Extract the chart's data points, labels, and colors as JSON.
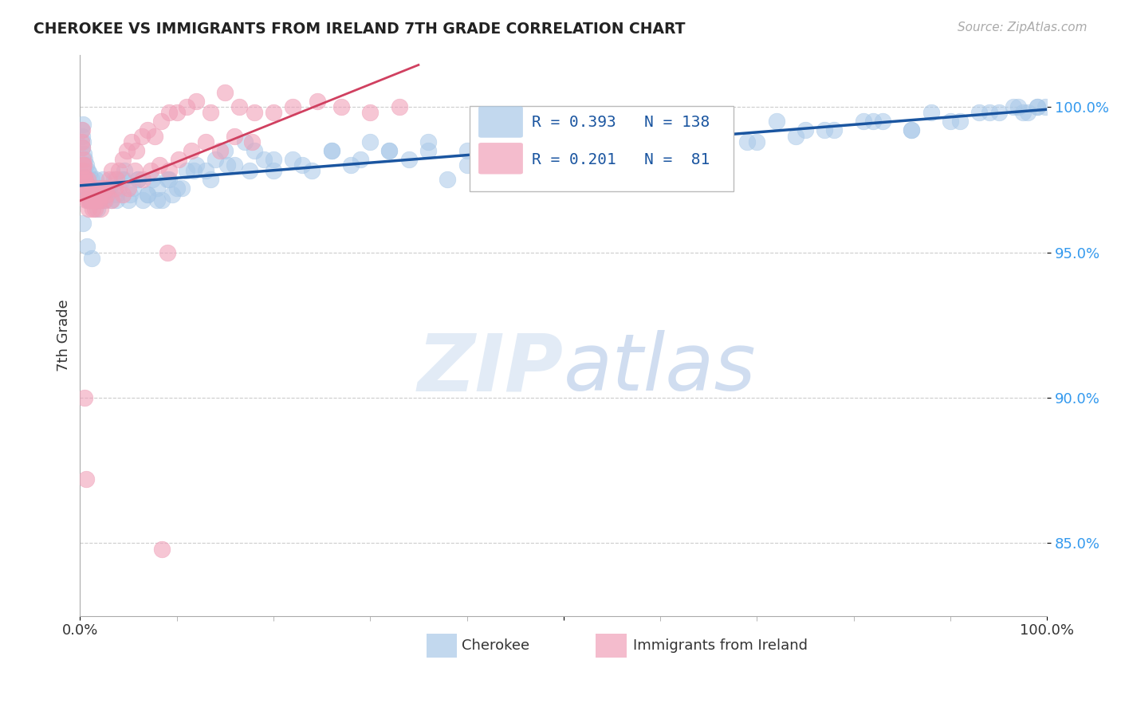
{
  "title": "CHEROKEE VS IMMIGRANTS FROM IRELAND 7TH GRADE CORRELATION CHART",
  "source": "Source: ZipAtlas.com",
  "ylabel": "7th Grade",
  "yticks": [
    0.85,
    0.9,
    0.95,
    1.0
  ],
  "ytick_labels": [
    "85.0%",
    "90.0%",
    "95.0%",
    "100.0%"
  ],
  "xlim": [
    0.0,
    1.0
  ],
  "ylim": [
    0.825,
    1.018
  ],
  "legend_r_blue": "R = 0.393",
  "legend_n_blue": "N = 138",
  "legend_r_pink": "R = 0.201",
  "legend_n_pink": "N =  81",
  "blue_color": "#a8c8e8",
  "pink_color": "#f0a0b8",
  "blue_line_color": "#1a55a0",
  "pink_line_color": "#d04060",
  "watermark_zip": "ZIP",
  "watermark_atlas": "atlas",
  "cherokee_x": [
    0.001,
    0.002,
    0.002,
    0.003,
    0.003,
    0.004,
    0.004,
    0.005,
    0.005,
    0.006,
    0.006,
    0.007,
    0.008,
    0.008,
    0.009,
    0.01,
    0.01,
    0.011,
    0.012,
    0.013,
    0.014,
    0.015,
    0.016,
    0.017,
    0.018,
    0.019,
    0.02,
    0.021,
    0.022,
    0.023,
    0.025,
    0.026,
    0.028,
    0.03,
    0.032,
    0.035,
    0.038,
    0.04,
    0.043,
    0.046,
    0.05,
    0.055,
    0.06,
    0.065,
    0.07,
    0.075,
    0.08,
    0.085,
    0.09,
    0.095,
    0.1,
    0.11,
    0.12,
    0.13,
    0.14,
    0.15,
    0.16,
    0.17,
    0.18,
    0.19,
    0.2,
    0.22,
    0.24,
    0.26,
    0.28,
    0.3,
    0.32,
    0.34,
    0.36,
    0.38,
    0.4,
    0.43,
    0.46,
    0.49,
    0.52,
    0.55,
    0.58,
    0.62,
    0.66,
    0.7,
    0.74,
    0.78,
    0.82,
    0.86,
    0.9,
    0.94,
    0.97,
    0.98,
    0.99,
    0.998,
    0.003,
    0.007,
    0.012,
    0.018,
    0.024,
    0.03,
    0.038,
    0.045,
    0.052,
    0.06,
    0.07,
    0.08,
    0.092,
    0.105,
    0.118,
    0.135,
    0.152,
    0.175,
    0.2,
    0.23,
    0.26,
    0.29,
    0.32,
    0.36,
    0.4,
    0.44,
    0.49,
    0.54,
    0.59,
    0.64,
    0.69,
    0.75,
    0.81,
    0.86,
    0.91,
    0.95,
    0.975,
    0.99,
    0.5,
    0.56,
    0.61,
    0.66,
    0.72,
    0.77,
    0.83,
    0.88,
    0.93,
    0.965
  ],
  "cherokee_y": [
    0.992,
    0.99,
    0.986,
    0.994,
    0.988,
    0.984,
    0.978,
    0.982,
    0.976,
    0.98,
    0.972,
    0.975,
    0.978,
    0.97,
    0.974,
    0.977,
    0.968,
    0.972,
    0.975,
    0.97,
    0.968,
    0.972,
    0.975,
    0.968,
    0.965,
    0.97,
    0.968,
    0.972,
    0.97,
    0.968,
    0.972,
    0.968,
    0.97,
    0.972,
    0.968,
    0.975,
    0.97,
    0.972,
    0.975,
    0.978,
    0.968,
    0.972,
    0.975,
    0.968,
    0.97,
    0.975,
    0.972,
    0.968,
    0.975,
    0.97,
    0.972,
    0.978,
    0.98,
    0.978,
    0.982,
    0.985,
    0.98,
    0.988,
    0.985,
    0.982,
    0.978,
    0.982,
    0.978,
    0.985,
    0.98,
    0.988,
    0.985,
    0.982,
    0.985,
    0.975,
    0.98,
    0.985,
    0.988,
    0.982,
    0.988,
    0.985,
    0.978,
    0.988,
    0.985,
    0.988,
    0.99,
    0.992,
    0.995,
    0.992,
    0.995,
    0.998,
    1.0,
    0.998,
    1.0,
    1.0,
    0.96,
    0.952,
    0.948,
    0.968,
    0.975,
    0.972,
    0.968,
    0.975,
    0.97,
    0.975,
    0.97,
    0.968,
    0.975,
    0.972,
    0.978,
    0.975,
    0.98,
    0.978,
    0.982,
    0.98,
    0.985,
    0.982,
    0.985,
    0.988,
    0.985,
    0.988,
    0.988,
    0.99,
    0.988,
    0.99,
    0.988,
    0.992,
    0.995,
    0.992,
    0.995,
    0.998,
    0.998,
    1.0,
    0.988,
    0.99,
    0.988,
    0.992,
    0.995,
    0.992,
    0.995,
    0.998,
    0.998,
    1.0
  ],
  "ireland_x": [
    0.001,
    0.002,
    0.002,
    0.003,
    0.003,
    0.004,
    0.004,
    0.005,
    0.005,
    0.006,
    0.006,
    0.007,
    0.008,
    0.008,
    0.009,
    0.01,
    0.011,
    0.012,
    0.013,
    0.015,
    0.016,
    0.018,
    0.019,
    0.021,
    0.023,
    0.025,
    0.028,
    0.03,
    0.033,
    0.036,
    0.04,
    0.044,
    0.048,
    0.053,
    0.058,
    0.064,
    0.07,
    0.077,
    0.084,
    0.092,
    0.1,
    0.11,
    0.12,
    0.135,
    0.15,
    0.165,
    0.18,
    0.2,
    0.22,
    0.245,
    0.27,
    0.3,
    0.33,
    0.003,
    0.005,
    0.007,
    0.01,
    0.013,
    0.016,
    0.02,
    0.024,
    0.028,
    0.033,
    0.038,
    0.044,
    0.05,
    0.057,
    0.065,
    0.073,
    0.082,
    0.092,
    0.102,
    0.115,
    0.13,
    0.145,
    0.16,
    0.178,
    0.005,
    0.09,
    0.006,
    0.085
  ],
  "ireland_y": [
    0.988,
    0.992,
    0.986,
    0.982,
    0.978,
    0.975,
    0.98,
    0.976,
    0.97,
    0.974,
    0.968,
    0.972,
    0.975,
    0.968,
    0.965,
    0.97,
    0.968,
    0.972,
    0.968,
    0.965,
    0.968,
    0.972,
    0.968,
    0.965,
    0.97,
    0.968,
    0.972,
    0.975,
    0.978,
    0.972,
    0.978,
    0.982,
    0.985,
    0.988,
    0.985,
    0.99,
    0.992,
    0.99,
    0.995,
    0.998,
    0.998,
    1.0,
    1.002,
    0.998,
    1.005,
    1.0,
    0.998,
    0.998,
    1.0,
    1.002,
    1.0,
    0.998,
    1.0,
    0.98,
    0.975,
    0.972,
    0.968,
    0.965,
    0.97,
    0.968,
    0.972,
    0.97,
    0.968,
    0.975,
    0.97,
    0.972,
    0.978,
    0.975,
    0.978,
    0.98,
    0.978,
    0.982,
    0.985,
    0.988,
    0.985,
    0.99,
    0.988,
    0.9,
    0.95,
    0.872,
    0.848
  ]
}
